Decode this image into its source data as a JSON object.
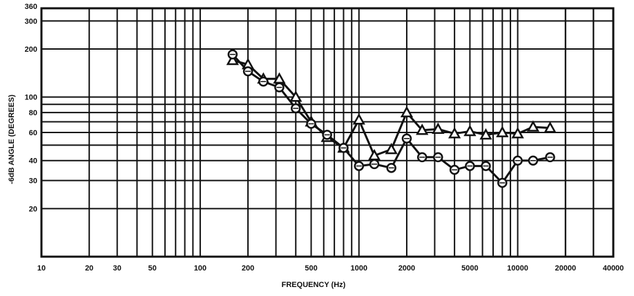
{
  "chart_data": {
    "type": "line",
    "title": "",
    "xlabel": "FREQUENCY (Hz)",
    "ylabel": "-6dB ANGLE (DEGREES)",
    "xscale": "log",
    "yscale": "log",
    "xlim": [
      10,
      40000
    ],
    "ylim": [
      10,
      360
    ],
    "grid": true,
    "legend": "none",
    "x_tick_labels": [
      "10",
      "20",
      "30",
      "50",
      "100",
      "200",
      "500",
      "1000",
      "2000",
      "5000",
      "10000",
      "20000",
      "40000"
    ],
    "x_tick_values": [
      10,
      20,
      30,
      50,
      100,
      200,
      500,
      1000,
      2000,
      5000,
      10000,
      20000,
      40000
    ],
    "y_tick_labels": [
      "20",
      "30",
      "40",
      "60",
      "80",
      "100",
      "200",
      "300",
      "360"
    ],
    "y_tick_values": [
      20,
      30,
      40,
      60,
      80,
      100,
      200,
      300,
      360
    ],
    "series": [
      {
        "marker": "triangle",
        "color": "#111111",
        "x": [
          160,
          200,
          250,
          315,
          400,
          500,
          630,
          800,
          1000,
          1250,
          1600,
          2000,
          2500,
          3150,
          4000,
          5000,
          6300,
          8000,
          10000,
          12500,
          16000
        ],
        "y": [
          170,
          160,
          130,
          130,
          100,
          70,
          56,
          48,
          72,
          43,
          47,
          80,
          62,
          63,
          59,
          61,
          58,
          60,
          59,
          65,
          64
        ]
      },
      {
        "marker": "circle",
        "color": "#111111",
        "x": [
          160,
          200,
          250,
          315,
          400,
          500,
          630,
          800,
          1000,
          1250,
          1600,
          2000,
          2500,
          3150,
          4000,
          5000,
          6300,
          8000,
          10000,
          12500,
          16000
        ],
        "y": [
          185,
          145,
          125,
          115,
          85,
          68,
          58,
          48,
          37,
          38,
          36,
          55,
          42,
          42,
          35,
          37,
          37,
          29,
          40,
          40,
          42
        ]
      }
    ]
  }
}
